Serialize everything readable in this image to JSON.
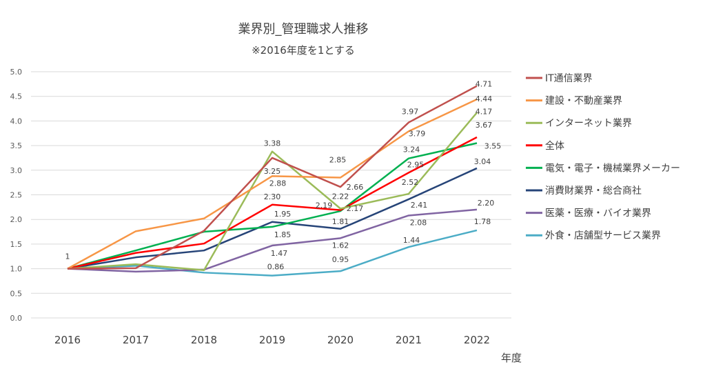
{
  "chart_data": {
    "type": "line",
    "title": "業界別_管理職求人推移",
    "subtitle": "※2016年度を1とする",
    "xlabel": "年度",
    "ylabel": "",
    "categories": [
      "2016",
      "2017",
      "2018",
      "2019",
      "2020",
      "2021",
      "2022"
    ],
    "ylim": [
      0,
      5
    ],
    "yticks": [
      "0.0",
      "0.5",
      "1.0",
      "1.5",
      "2.0",
      "2.5",
      "3.0",
      "3.5",
      "4.0",
      "4.5",
      "5.0"
    ],
    "grid": true,
    "legend": "right",
    "series": [
      {
        "name": "IT通信業界",
        "color": "#C0504D",
        "values": [
          1,
          1.01,
          1.77,
          3.25,
          2.66,
          3.97,
          4.71
        ],
        "labels": [
          null,
          null,
          null,
          "3.25",
          "2.66",
          "3.97",
          "4.71"
        ]
      },
      {
        "name": "建設・不動産業界",
        "color": "#F79646",
        "values": [
          1,
          1.76,
          2.02,
          2.88,
          2.85,
          3.79,
          4.44
        ],
        "labels": [
          null,
          null,
          null,
          "2.88",
          "2.85",
          "3.79",
          "4.44"
        ]
      },
      {
        "name": "インターネット業界",
        "color": "#9BBB59",
        "values": [
          1,
          1.09,
          0.97,
          3.38,
          2.22,
          2.52,
          4.17
        ],
        "labels": [
          null,
          null,
          null,
          "3.38",
          "2.22",
          "2.52",
          "4.17"
        ]
      },
      {
        "name": "全体",
        "color": "#FF0000",
        "values": [
          1,
          1.32,
          1.51,
          2.3,
          2.19,
          2.95,
          3.67
        ],
        "labels": [
          "1",
          null,
          null,
          "2.30",
          "2.19",
          "2.95",
          "3.67"
        ]
      },
      {
        "name": "電気・電子・機械業界メーカー",
        "color": "#00B050",
        "values": [
          1,
          1.37,
          1.75,
          1.85,
          2.17,
          3.24,
          3.55
        ],
        "labels": [
          null,
          null,
          null,
          "1.85",
          "2.17",
          "3.24",
          "3.55"
        ]
      },
      {
        "name": "消費財業界・総合商社",
        "color": "#264478",
        "values": [
          1,
          1.23,
          1.37,
          1.95,
          1.81,
          2.41,
          3.04
        ],
        "labels": [
          null,
          null,
          null,
          "1.95",
          "1.81",
          "2.41",
          "3.04"
        ]
      },
      {
        "name": "医薬・医療・バイオ業界",
        "color": "#8064A2",
        "values": [
          1,
          0.94,
          0.98,
          1.47,
          1.62,
          2.08,
          2.2
        ],
        "labels": [
          null,
          null,
          null,
          "1.47",
          "1.62",
          "2.08",
          "2.20"
        ]
      },
      {
        "name": "外食・店舗型サービス業界",
        "color": "#4BACC6",
        "values": [
          1,
          1.06,
          0.92,
          0.86,
          0.95,
          1.44,
          1.78
        ],
        "labels": [
          null,
          null,
          null,
          "0.86",
          "0.95",
          "1.44",
          "1.78"
        ]
      }
    ]
  }
}
